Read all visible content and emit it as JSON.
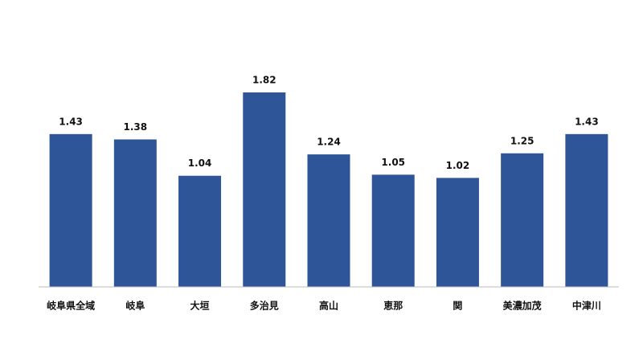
{
  "chart_data": {
    "type": "bar",
    "categories": [
      "岐阜県全域",
      "岐阜",
      "大垣",
      "多治見",
      "高山",
      "恵那",
      "関",
      "美濃加茂",
      "中津川"
    ],
    "values": [
      1.43,
      1.38,
      1.04,
      1.82,
      1.24,
      1.05,
      1.02,
      1.25,
      1.43
    ],
    "color": "#2e5597"
  }
}
